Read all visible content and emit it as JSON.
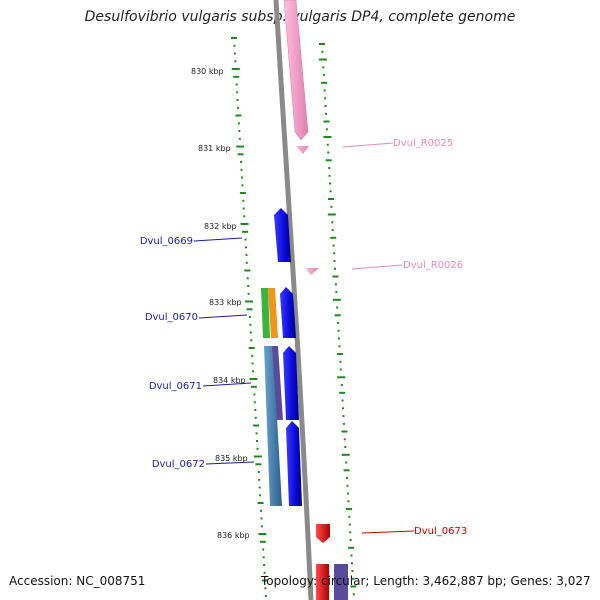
{
  "title": "Desulfovibrio vulgaris subsp. vulgaris DP4, complete genome",
  "footer": {
    "accession": "Accession: NC_008751",
    "topology": "Topology: circular; Length: 3,462,887 bp; Genes: 3,027"
  },
  "scale_labels": [
    "830 kbp",
    "831 kbp",
    "832 kbp",
    "833 kbp",
    "834 kbp",
    "835 kbp",
    "836 kbp"
  ],
  "gene_labels": [
    {
      "id": "r25",
      "text": "Dvul_R0025",
      "color": "#e48ab8"
    },
    {
      "id": "r26",
      "text": "Dvul_R0026",
      "color": "#e48ab8"
    },
    {
      "id": "g669",
      "text": "Dvul_0669",
      "color": "#1a1aa6"
    },
    {
      "id": "g670",
      "text": "Dvul_0670",
      "color": "#1a1aa6"
    },
    {
      "id": "g671",
      "text": "Dvul_0671",
      "color": "#1a1aa6"
    },
    {
      "id": "g672",
      "text": "Dvul_0672",
      "color": "#1a1aa6"
    },
    {
      "id": "g673",
      "text": "Dvul_0673",
      "color": "#cc0000"
    }
  ],
  "colors": {
    "backbone": "#8a8a8a",
    "tick": "#1e8a1e",
    "rna": "#f4a0c8",
    "cds_blue": "#1010e0",
    "cds_red": "#e01010",
    "green": "#3cb43c",
    "orange": "#f0961e",
    "steel": "#4682b4",
    "purple": "#5a4a9a"
  }
}
